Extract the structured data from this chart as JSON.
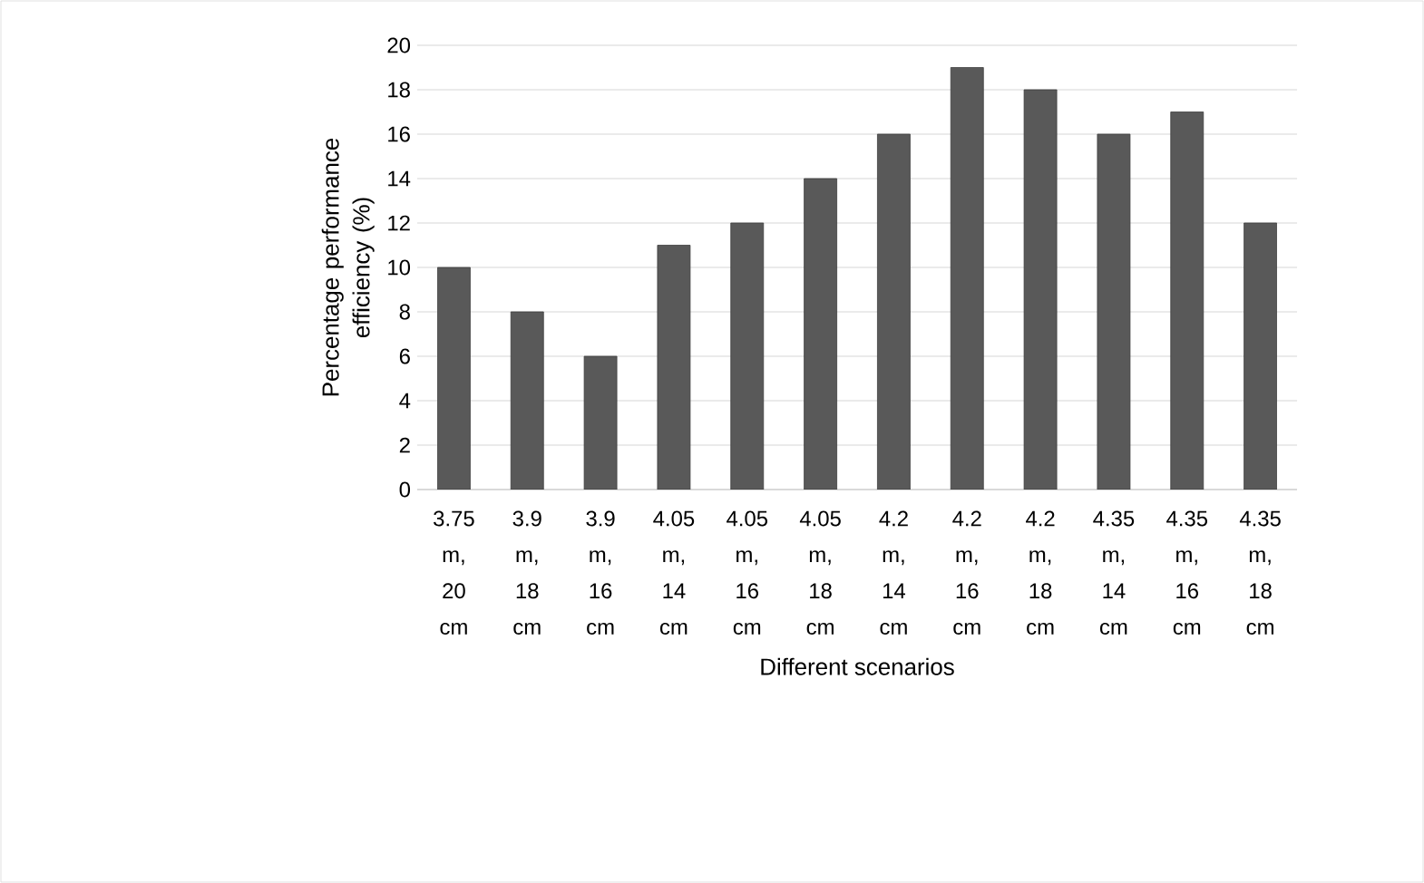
{
  "chart_data": {
    "type": "bar",
    "xlabel": "Different scenarios",
    "ylabel": "Percentage performance efficiency (%)",
    "categories": [
      "3.75 m, 20 cm",
      "3.9 m, 18 cm",
      "3.9 m, 16 cm",
      "4.05 m, 14 cm",
      "4.05 m, 16 cm",
      "4.05 m, 18 cm",
      "4.2 m, 14 cm",
      "4.2 m, 16 cm",
      "4.2 m, 18 cm",
      "4.35 m, 14 cm",
      "4.35 m, 16 cm",
      "4.35 m, 18 cm"
    ],
    "values": [
      10,
      8,
      6,
      11,
      12,
      14,
      16,
      19,
      18,
      16,
      17,
      12
    ],
    "color": "#595959",
    "ylim": [
      0,
      20
    ],
    "yticks": [
      0,
      2,
      4,
      6,
      8,
      10,
      12,
      14,
      16,
      18,
      20
    ],
    "grid": "y"
  }
}
